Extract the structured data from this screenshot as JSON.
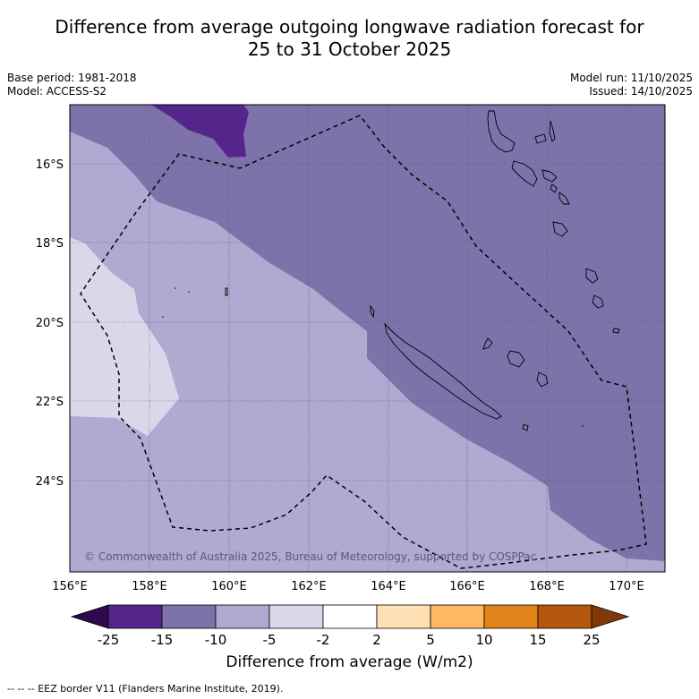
{
  "title": {
    "line1": "Difference from average outgoing longwave radiation forecast for",
    "line2": "25 to 31 October 2025"
  },
  "meta": {
    "base_period": "Base period: 1981-2018",
    "model": "Model: ACCESS-S2",
    "model_run": "Model run: 11/10/2025",
    "issued": "Issued: 14/10/2025"
  },
  "copyright": "© Commonwealth of Australia 2025, Bureau of Meteorology, supported by COSPPac",
  "footer": "--  --  -- EEZ border V11 (Flanders Marine Institute, 2019).",
  "colorbar": {
    "title": "Difference from average (W/m2)",
    "bins": [
      {
        "color": "#2d0a4e"
      },
      {
        "color": "#54268b"
      },
      {
        "color": "#7e72ab"
      },
      {
        "color": "#b0a9d1"
      },
      {
        "color": "#d8d8ea"
      },
      {
        "color": "#ffffff"
      },
      {
        "color": "#ffdfb4"
      },
      {
        "color": "#ffb760"
      },
      {
        "color": "#e18318"
      },
      {
        "color": "#b3570c"
      },
      {
        "color": "#7f3a07"
      }
    ],
    "labels": [
      "-25",
      "-15",
      "-10",
      "-5",
      "-2",
      "2",
      "5",
      "10",
      "15",
      "25"
    ]
  },
  "axes": {
    "x_ticks": [
      "156°E",
      "158°E",
      "160°E",
      "162°E",
      "164°E",
      "166°E",
      "168°E",
      "170°E"
    ],
    "y_ticks": [
      "16°S",
      "18°S",
      "20°S",
      "22°S",
      "24°S"
    ]
  },
  "regions": [
    {
      "name": "region-anomaly-minus10-to-minus5",
      "range": "-10 to -5",
      "color": "#b0a9d1"
    },
    {
      "name": "region-anomaly-minus15-to-minus10",
      "range": "-15 to -10",
      "color": "#7e72ab"
    },
    {
      "name": "region-anomaly-minus25-to-minus15",
      "range": "-25 to -15",
      "color": "#54268b"
    },
    {
      "name": "region-anomaly-minus5-to-minus2",
      "range": "-5 to -2",
      "color": "#d8d8ea"
    }
  ]
}
